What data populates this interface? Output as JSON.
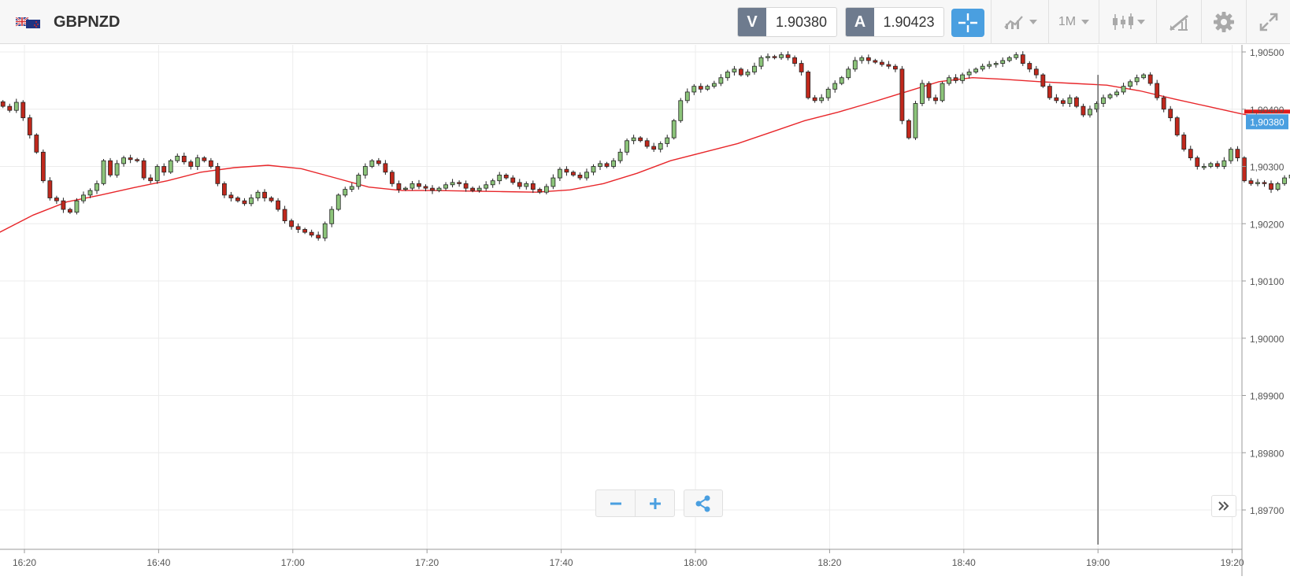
{
  "toolbar": {
    "symbol": "GBPNZD",
    "flag_icon": "gb-nz-flag-icon",
    "sell": {
      "label": "V",
      "price": "1.90380"
    },
    "buy": {
      "label": "A",
      "price": "1.90423"
    },
    "timeframe": "1M",
    "icons": {
      "crosshair": "crosshair-icon",
      "indicators": "indicators-icon",
      "chart_type": "candlestick-icon",
      "drawing": "drawing-tools-icon",
      "settings": "gear-icon",
      "fullscreen": "expand-icon"
    }
  },
  "chart_data": {
    "type": "candlestick",
    "y_axis": {
      "ticks": [
        "1,90500",
        "1,90400",
        "1,90300",
        "1,90200",
        "1,90100",
        "1,90000",
        "1,89900",
        "1,89800",
        "1,89700"
      ],
      "tick_values": [
        1.905,
        1.904,
        1.903,
        1.902,
        1.901,
        1.9,
        1.899,
        1.898,
        1.897
      ],
      "range": [
        1.8964,
        1.9051
      ]
    },
    "x_axis": {
      "ticks": [
        "16:20",
        "16:40",
        "17:00",
        "17:20",
        "17:40",
        "18:00",
        "18:20",
        "18:40",
        "19:00",
        "19:20"
      ]
    },
    "current_price": {
      "label": "1,90380",
      "value": 1.9038
    },
    "candle_closes": [
      1.90405,
      1.90398,
      1.90412,
      1.90385,
      1.90355,
      1.90325,
      1.90275,
      1.90245,
      1.9024,
      1.90225,
      1.9022,
      1.9024,
      1.9025,
      1.90258,
      1.9027,
      1.9031,
      1.90285,
      1.90305,
      1.90315,
      1.90312,
      1.9031,
      1.9028,
      1.90275,
      1.903,
      1.9029,
      1.9031,
      1.90318,
      1.90308,
      1.903,
      1.90315,
      1.9031,
      1.903,
      1.9027,
      1.9025,
      1.90245,
      1.9024,
      1.90235,
      1.90245,
      1.90255,
      1.90245,
      1.9024,
      1.90225,
      1.90205,
      1.90195,
      1.9019,
      1.90185,
      1.9018,
      1.90175,
      1.902,
      1.90225,
      1.9025,
      1.9026,
      1.90265,
      1.90285,
      1.903,
      1.9031,
      1.90305,
      1.9029,
      1.9027,
      1.9026,
      1.90262,
      1.9027,
      1.90265,
      1.90262,
      1.90258,
      1.90262,
      1.90268,
      1.90272,
      1.9027,
      1.90262,
      1.90258,
      1.90262,
      1.90268,
      1.90275,
      1.90285,
      1.9028,
      1.90272,
      1.90265,
      1.9027,
      1.9026,
      1.90255,
      1.90265,
      1.9028,
      1.90295,
      1.9029,
      1.90285,
      1.9028,
      1.9029,
      1.903,
      1.90305,
      1.903,
      1.9031,
      1.90325,
      1.90345,
      1.9035,
      1.90345,
      1.90335,
      1.9033,
      1.9034,
      1.9035,
      1.9038,
      1.90415,
      1.9043,
      1.9044,
      1.90435,
      1.9044,
      1.90445,
      1.90455,
      1.90465,
      1.9047,
      1.9046,
      1.90465,
      1.90475,
      1.9049,
      1.90492,
      1.9049,
      1.90495,
      1.9049,
      1.9048,
      1.90465,
      1.9042,
      1.90415,
      1.9042,
      1.90435,
      1.90445,
      1.90455,
      1.9047,
      1.90485,
      1.9049,
      1.90485,
      1.90482,
      1.90478,
      1.90475,
      1.9047,
      1.9038,
      1.9035,
      1.9041,
      1.90445,
      1.9042,
      1.90415,
      1.90445,
      1.90455,
      1.9045,
      1.9046,
      1.90465,
      1.9047,
      1.90475,
      1.90478,
      1.9048,
      1.90485,
      1.9049,
      1.90495,
      1.9048,
      1.9047,
      1.9046,
      1.9044,
      1.9042,
      1.90415,
      1.9041,
      1.9042,
      1.90405,
      1.9039,
      1.904,
      1.9041,
      1.9042,
      1.90425,
      1.9043,
      1.9044,
      1.90448,
      1.90455,
      1.9046,
      1.90445,
      1.9042,
      1.904,
      1.90385,
      1.90355,
      1.9033,
      1.90315,
      1.903,
      1.903,
      1.90305,
      1.903,
      1.9031,
      1.9033,
      1.90315,
      1.90275,
      1.9027,
      1.90272,
      1.9027,
      1.9026,
      1.9027,
      1.9028,
      1.90285,
      1.9028,
      1.90305
    ],
    "moving_average": {
      "color": "#e8262a",
      "x_minutes": [
        0,
        5,
        10,
        15,
        20,
        25,
        30,
        35,
        40,
        45,
        50,
        55,
        60,
        65,
        70,
        75,
        80,
        85,
        90,
        95,
        100,
        105,
        110,
        115,
        120,
        125,
        130,
        135,
        140,
        145,
        150,
        155,
        160,
        165,
        170,
        175,
        180,
        185,
        186
      ],
      "values": [
        1.90185,
        1.90215,
        1.90238,
        1.9025,
        1.90263,
        1.90275,
        1.9029,
        1.90298,
        1.90302,
        1.90296,
        1.9028,
        1.90264,
        1.90258,
        1.90258,
        1.90257,
        1.90256,
        1.90255,
        1.90259,
        1.9027,
        1.90288,
        1.9031,
        1.90325,
        1.9034,
        1.9036,
        1.9038,
        1.90395,
        1.90412,
        1.9043,
        1.90448,
        1.90455,
        1.90452,
        1.90448,
        1.90445,
        1.90442,
        1.90432,
        1.90418,
        1.90405,
        1.90392,
        1.9039
      ]
    },
    "cursor_time": "19:00",
    "colors": {
      "up": "#8cc47a",
      "down": "#c0281c",
      "grid": "#ececec",
      "cursor_line": "#707070",
      "price_tag": "#4a9fe0"
    }
  }
}
